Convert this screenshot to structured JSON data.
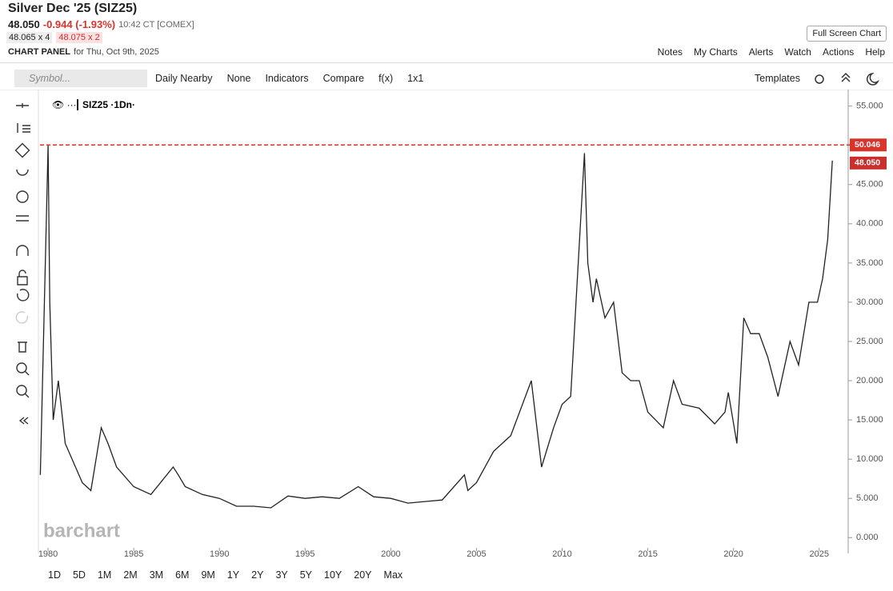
{
  "header": {
    "title": "Silver Dec '25 (SIZ25)",
    "last": "48.050",
    "change": "-0.944 (-1.93%)",
    "time": "10:42 CT [COMEX]",
    "bid": "48.065 x 4",
    "ask": "48.075 x 2",
    "panel": "CHART PANEL",
    "date": "for Thu, Oct 9th, 2025",
    "full_screen": "Full Screen Chart"
  },
  "nav": [
    "Notes",
    "My Charts",
    "Alerts",
    "Watch",
    "Actions",
    "Help"
  ],
  "toolbar": {
    "symbol_placeholder": "Symbol...",
    "items": [
      "Daily Nearby",
      "None",
      "Indicators",
      "Compare",
      "f(x)",
      "1x1"
    ],
    "templates": "Templates"
  },
  "ranges": [
    "1D",
    "5D",
    "1M",
    "2M",
    "3M",
    "6M",
    "9M",
    "1Y",
    "2Y",
    "3Y",
    "5Y",
    "10Y",
    "20Y",
    "Max"
  ],
  "chart_data": {
    "type": "line",
    "watermark": "barchart",
    "x": [
      1979.55,
      1980.0,
      1980.1,
      1980.3,
      1980.6,
      1981.0,
      1982.0,
      1982.5,
      1983.1,
      1983.5,
      1984.0,
      1985.0,
      1986.0,
      1987.3,
      1987.6,
      1988.0,
      1989.0,
      1990.0,
      1991.0,
      1992.0,
      1993.0,
      1994.0,
      1995.0,
      1996.0,
      1997.0,
      1998.1,
      1999.0,
      2000.0,
      2001.0,
      2002.0,
      2003.0,
      2004.3,
      2004.5,
      2005.0,
      2006.0,
      2006.5,
      2007.0,
      2008.2,
      2008.8,
      2009.5,
      2010.0,
      2010.5,
      2011.3,
      2011.5,
      2011.8,
      2012.0,
      2012.5,
      2013.0,
      2013.5,
      2014.0,
      2014.5,
      2015.0,
      2015.9,
      2016.5,
      2017.0,
      2018.0,
      2018.9,
      2019.5,
      2019.7,
      2020.2,
      2020.6,
      2021.0,
      2021.5,
      2022.0,
      2022.6,
      2023.3,
      2023.8,
      2024.4,
      2024.9,
      2025.2,
      2025.5,
      2025.77
    ],
    "series": [
      {
        "name": "SIZ25 ·1Dn·",
        "color": "#222222",
        "values": [
          8,
          50,
          30,
          15,
          20,
          12,
          7,
          6,
          14,
          12,
          9,
          6.5,
          5.5,
          9,
          8,
          6.5,
          5.5,
          5,
          4,
          4,
          3.8,
          5.3,
          5,
          5.2,
          5,
          6.5,
          5.2,
          5,
          4.4,
          4.6,
          4.8,
          8,
          6,
          7,
          11,
          12,
          13,
          20,
          9,
          14,
          17,
          18,
          49,
          35,
          30,
          33,
          28,
          30,
          21,
          20,
          20,
          16,
          14,
          20,
          17,
          16.5,
          14.5,
          16,
          18.5,
          12,
          28,
          26,
          26,
          23,
          18,
          25,
          22,
          30,
          30,
          33,
          38,
          48.05
        ]
      }
    ],
    "high": 50.046,
    "last": {
      "value": 48.05,
      "label": "48.050"
    },
    "xlim": [
      1979.53,
      2026.6
    ],
    "ylim": [
      -1.3,
      56.8
    ],
    "xticks": [
      1980,
      1985,
      1990,
      1995,
      2000,
      2005,
      2010,
      2015,
      2020,
      2025
    ],
    "yticks": [
      {
        "value": 0,
        "label": "0.000"
      },
      {
        "value": 5,
        "label": "5.000"
      },
      {
        "value": 10,
        "label": "10.000"
      },
      {
        "value": 15,
        "label": "15.000"
      },
      {
        "value": 20,
        "label": "20.000"
      },
      {
        "value": 25,
        "label": "25.000"
      },
      {
        "value": 30,
        "label": "30.000"
      },
      {
        "value": 35,
        "label": "35.000"
      },
      {
        "value": 40,
        "label": "40.000"
      },
      {
        "value": 45,
        "label": "45.000"
      },
      {
        "value": 50,
        "label": "50.000"
      },
      {
        "value": 55,
        "label": "55.000"
      }
    ]
  }
}
